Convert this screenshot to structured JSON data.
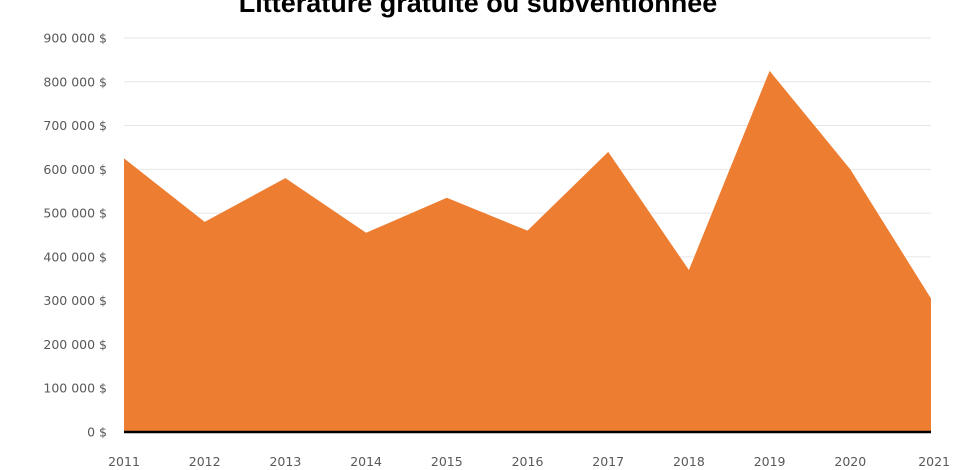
{
  "chart_data": {
    "type": "area",
    "title": "Littérature gratuite ou subventionnée",
    "xlabel": "",
    "ylabel": "",
    "categories": [
      "2011",
      "2012",
      "2013",
      "2014",
      "2015",
      "2016",
      "2017",
      "2018",
      "2019",
      "2020",
      "2021"
    ],
    "series": [
      {
        "values": [
          625000,
          480000,
          580000,
          455000,
          535000,
          460000,
          640000,
          370000,
          825000,
          600000,
          305000
        ]
      }
    ],
    "ylim": [
      0,
      900000
    ],
    "y_ticks": [
      {
        "value": 0,
        "label": "0 $"
      },
      {
        "value": 100000,
        "label": "100 000 $"
      },
      {
        "value": 200000,
        "label": "200 000 $"
      },
      {
        "value": 300000,
        "label": "300 000 $"
      },
      {
        "value": 400000,
        "label": "400 000 $"
      },
      {
        "value": 500000,
        "label": "500 000 $"
      },
      {
        "value": 600000,
        "label": "600 000 $"
      },
      {
        "value": 700000,
        "label": "700 000 $"
      },
      {
        "value": 800000,
        "label": "800 000 $"
      },
      {
        "value": 900000,
        "label": "900 000 $"
      }
    ],
    "grid": true,
    "legend": "none",
    "colors": {
      "area": "#ED7D31",
      "gridline": "#E6E6E6",
      "axis_line": "#000000",
      "tick_text": "#595959"
    }
  }
}
